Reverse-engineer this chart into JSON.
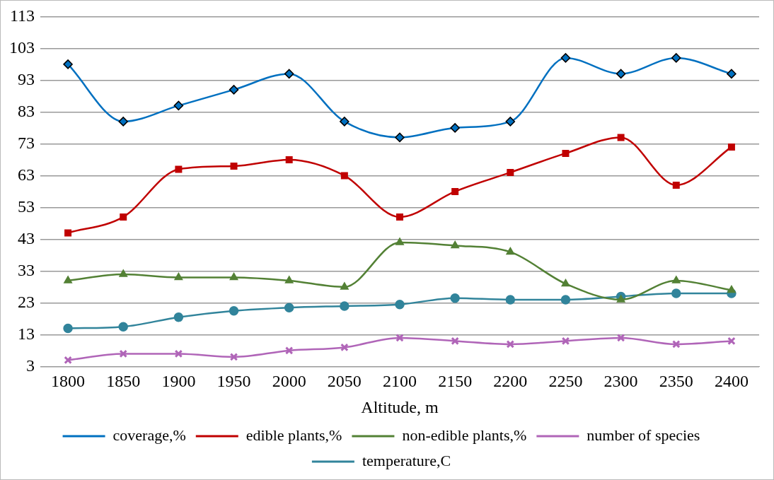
{
  "chart_data": {
    "type": "line",
    "xlabel": "Altitude, m",
    "categories": [
      "1800",
      "1850",
      "1900",
      "1950",
      "2000",
      "2050",
      "2100",
      "2150",
      "2200",
      "2250",
      "2300",
      "2350",
      "2400"
    ],
    "ylim": [
      3,
      113
    ],
    "yticks": [
      3,
      13,
      23,
      33,
      43,
      53,
      63,
      73,
      83,
      93,
      103,
      113
    ],
    "grid": "y",
    "legend": "bottom",
    "series": [
      {
        "name": "coverage,%",
        "color": "#0070c0",
        "marker": "diamond",
        "values": [
          98,
          80,
          85,
          90,
          95,
          80,
          75,
          78,
          80,
          100,
          95,
          100,
          95
        ]
      },
      {
        "name": "edible plants,%",
        "color": "#c00000",
        "marker": "square",
        "values": [
          45,
          50,
          65,
          66,
          68,
          63,
          50,
          58,
          64,
          70,
          75,
          60,
          72
        ]
      },
      {
        "name": "non-edible plants,%",
        "color": "#538135",
        "marker": "triangle",
        "values": [
          30,
          32,
          31,
          31,
          30,
          28,
          42,
          41,
          39,
          29,
          24,
          30,
          27
        ]
      },
      {
        "name": "number of species",
        "color": "#b065b8",
        "marker": "cross",
        "values": [
          5,
          7,
          7,
          6,
          8,
          9,
          12,
          11,
          10,
          11,
          12,
          10,
          11
        ]
      },
      {
        "name": "temperature,C",
        "color": "#31849b",
        "marker": "circle",
        "values": [
          15,
          15.5,
          18.5,
          20.5,
          21.5,
          22,
          22.5,
          24.5,
          24,
          24,
          25,
          26,
          26
        ]
      }
    ]
  }
}
